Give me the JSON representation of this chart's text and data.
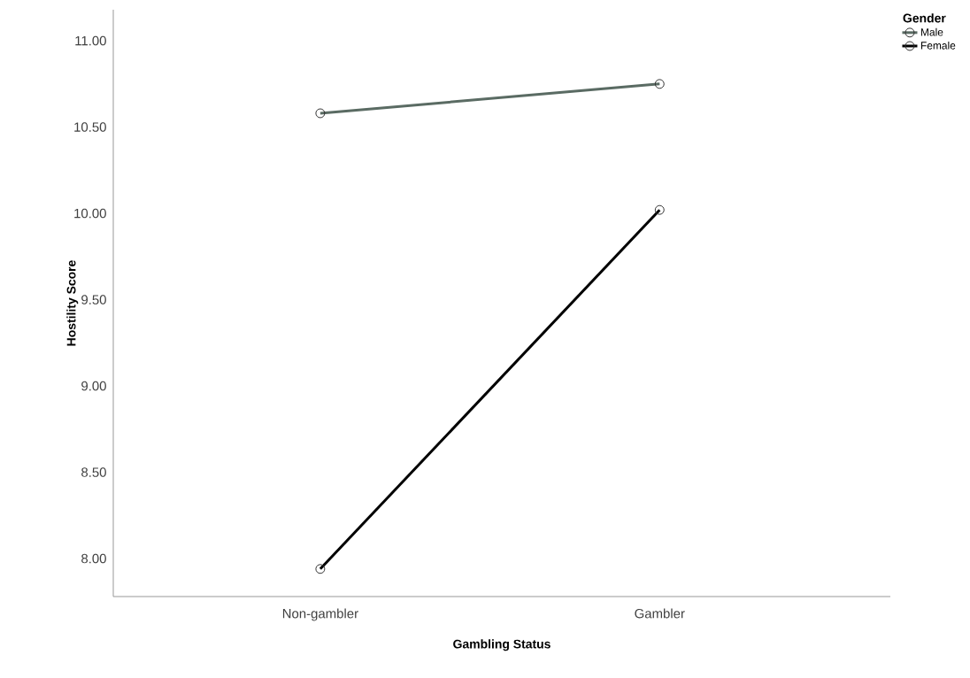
{
  "chart_data": {
    "type": "line",
    "xlabel": "Gambling Status",
    "ylabel": "Hostility Score",
    "legend_title": "Gender",
    "categories": [
      "Non-gambler",
      "Gambler"
    ],
    "series": [
      {
        "name": "Male",
        "color": "#5a6b63",
        "values": [
          10.58,
          10.75
        ]
      },
      {
        "name": "Female",
        "color": "#000000",
        "values": [
          7.94,
          10.02
        ]
      }
    ],
    "ylim": [
      7.78,
      11.18
    ],
    "yticks": [
      {
        "value": 8,
        "label": "8.00"
      },
      {
        "value": 8.5,
        "label": "8.50"
      },
      {
        "value": 9,
        "label": "9.00"
      },
      {
        "value": 9.5,
        "label": "9.50"
      },
      {
        "value": 10,
        "label": "10.00"
      },
      {
        "value": 10.5,
        "label": "10.50"
      },
      {
        "value": 11,
        "label": "11.00"
      }
    ],
    "grid": false,
    "legend": "top right",
    "marker": "circle",
    "line_style": "solid"
  }
}
